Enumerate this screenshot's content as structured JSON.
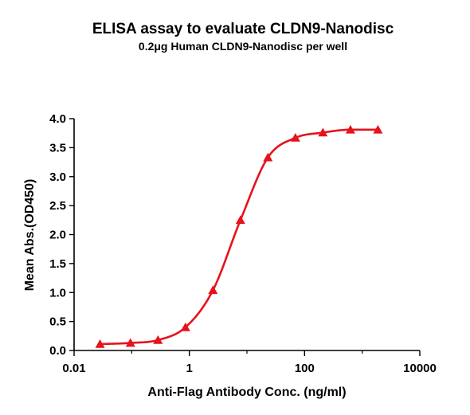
{
  "chart_data": {
    "type": "scatter",
    "title": "ELISA assay to evaluate CLDN9-Nanodisc",
    "subtitle": "0.2μg Human CLDN9-Nanodisc per well",
    "xlabel": "Anti-Flag Antibody Conc. (ng/ml)",
    "ylabel": "Mean Abs.(OD450)",
    "x_scale": "log",
    "xlim": [
      0.01,
      10000
    ],
    "ylim": [
      0,
      4.0
    ],
    "x_ticks": [
      0.01,
      1,
      100,
      10000
    ],
    "x_tick_labels": [
      "0.01",
      "1",
      "100",
      "10000"
    ],
    "y_ticks": [
      0.0,
      0.5,
      1.0,
      1.5,
      2.0,
      2.5,
      3.0,
      3.5,
      4.0
    ],
    "y_tick_labels": [
      "0.0",
      "0.5",
      "1.0",
      "1.5",
      "2.0",
      "2.5",
      "3.0",
      "3.5",
      "4.0"
    ],
    "grid": false,
    "legend": "none",
    "series": [
      {
        "marker": "triangle",
        "color": "#e8121b",
        "fit": "4PL curve",
        "x": [
          0.0282,
          0.0952,
          0.286,
          0.857,
          2.57,
          7.71,
          23.1,
          69.4,
          208,
          625,
          1875
        ],
        "y": [
          0.11,
          0.13,
          0.18,
          0.4,
          1.04,
          2.25,
          3.33,
          3.67,
          3.76,
          3.81,
          3.81
        ]
      }
    ]
  }
}
